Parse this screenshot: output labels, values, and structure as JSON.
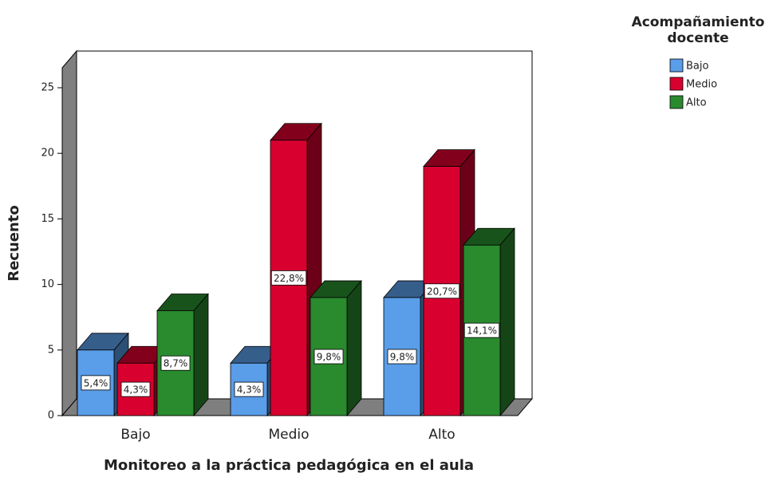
{
  "chart_data": {
    "type": "bar3d",
    "x_label": "Monitoreo a la práctica pedagógica en el aula",
    "y_label": "Recuento",
    "legend_title": [
      "Acompañamiento",
      "docente"
    ],
    "categories": [
      "Bajo",
      "Medio",
      "Alto"
    ],
    "series": [
      {
        "name": "Bajo",
        "color": "#5a9de8",
        "values": [
          5,
          4,
          9
        ],
        "percent_labels": [
          "5,4%",
          "4,3%",
          "9,8%"
        ]
      },
      {
        "name": "Medio",
        "color": "#d8002f",
        "values": [
          4,
          21,
          19
        ],
        "percent_labels": [
          "4,3%",
          "22,8%",
          "20,7%"
        ]
      },
      {
        "name": "Alto",
        "color": "#2a8a2e",
        "values": [
          8,
          9,
          13
        ],
        "percent_labels": [
          "8,7%",
          "9,8%",
          "14,1%"
        ]
      }
    ],
    "ylim": [
      0,
      25
    ],
    "yticks": [
      0,
      5,
      10,
      15,
      20,
      25
    ]
  }
}
